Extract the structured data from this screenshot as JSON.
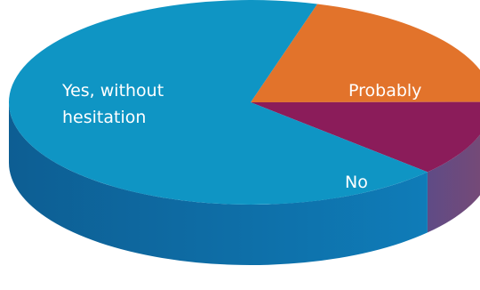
{
  "chart_data": {
    "type": "pie",
    "style": "3d",
    "title": "",
    "slices": [
      {
        "label": [
          "Yes, without",
          "hesitation"
        ],
        "color": "#0f95c4",
        "side_colors": [
          "#0d5e93",
          "#0f7cb8"
        ]
      },
      {
        "label": [
          "Probably"
        ],
        "color": "#e2732b",
        "side_colors": [
          "#b5652f",
          "#c97a45"
        ]
      },
      {
        "label": [
          "No"
        ],
        "color": "#8b1c5a",
        "side_colors": [
          "#5f4b86",
          "#7a4a74"
        ]
      }
    ],
    "values": [
      67.5,
      20.5,
      12.0
    ],
    "legend": "none"
  }
}
